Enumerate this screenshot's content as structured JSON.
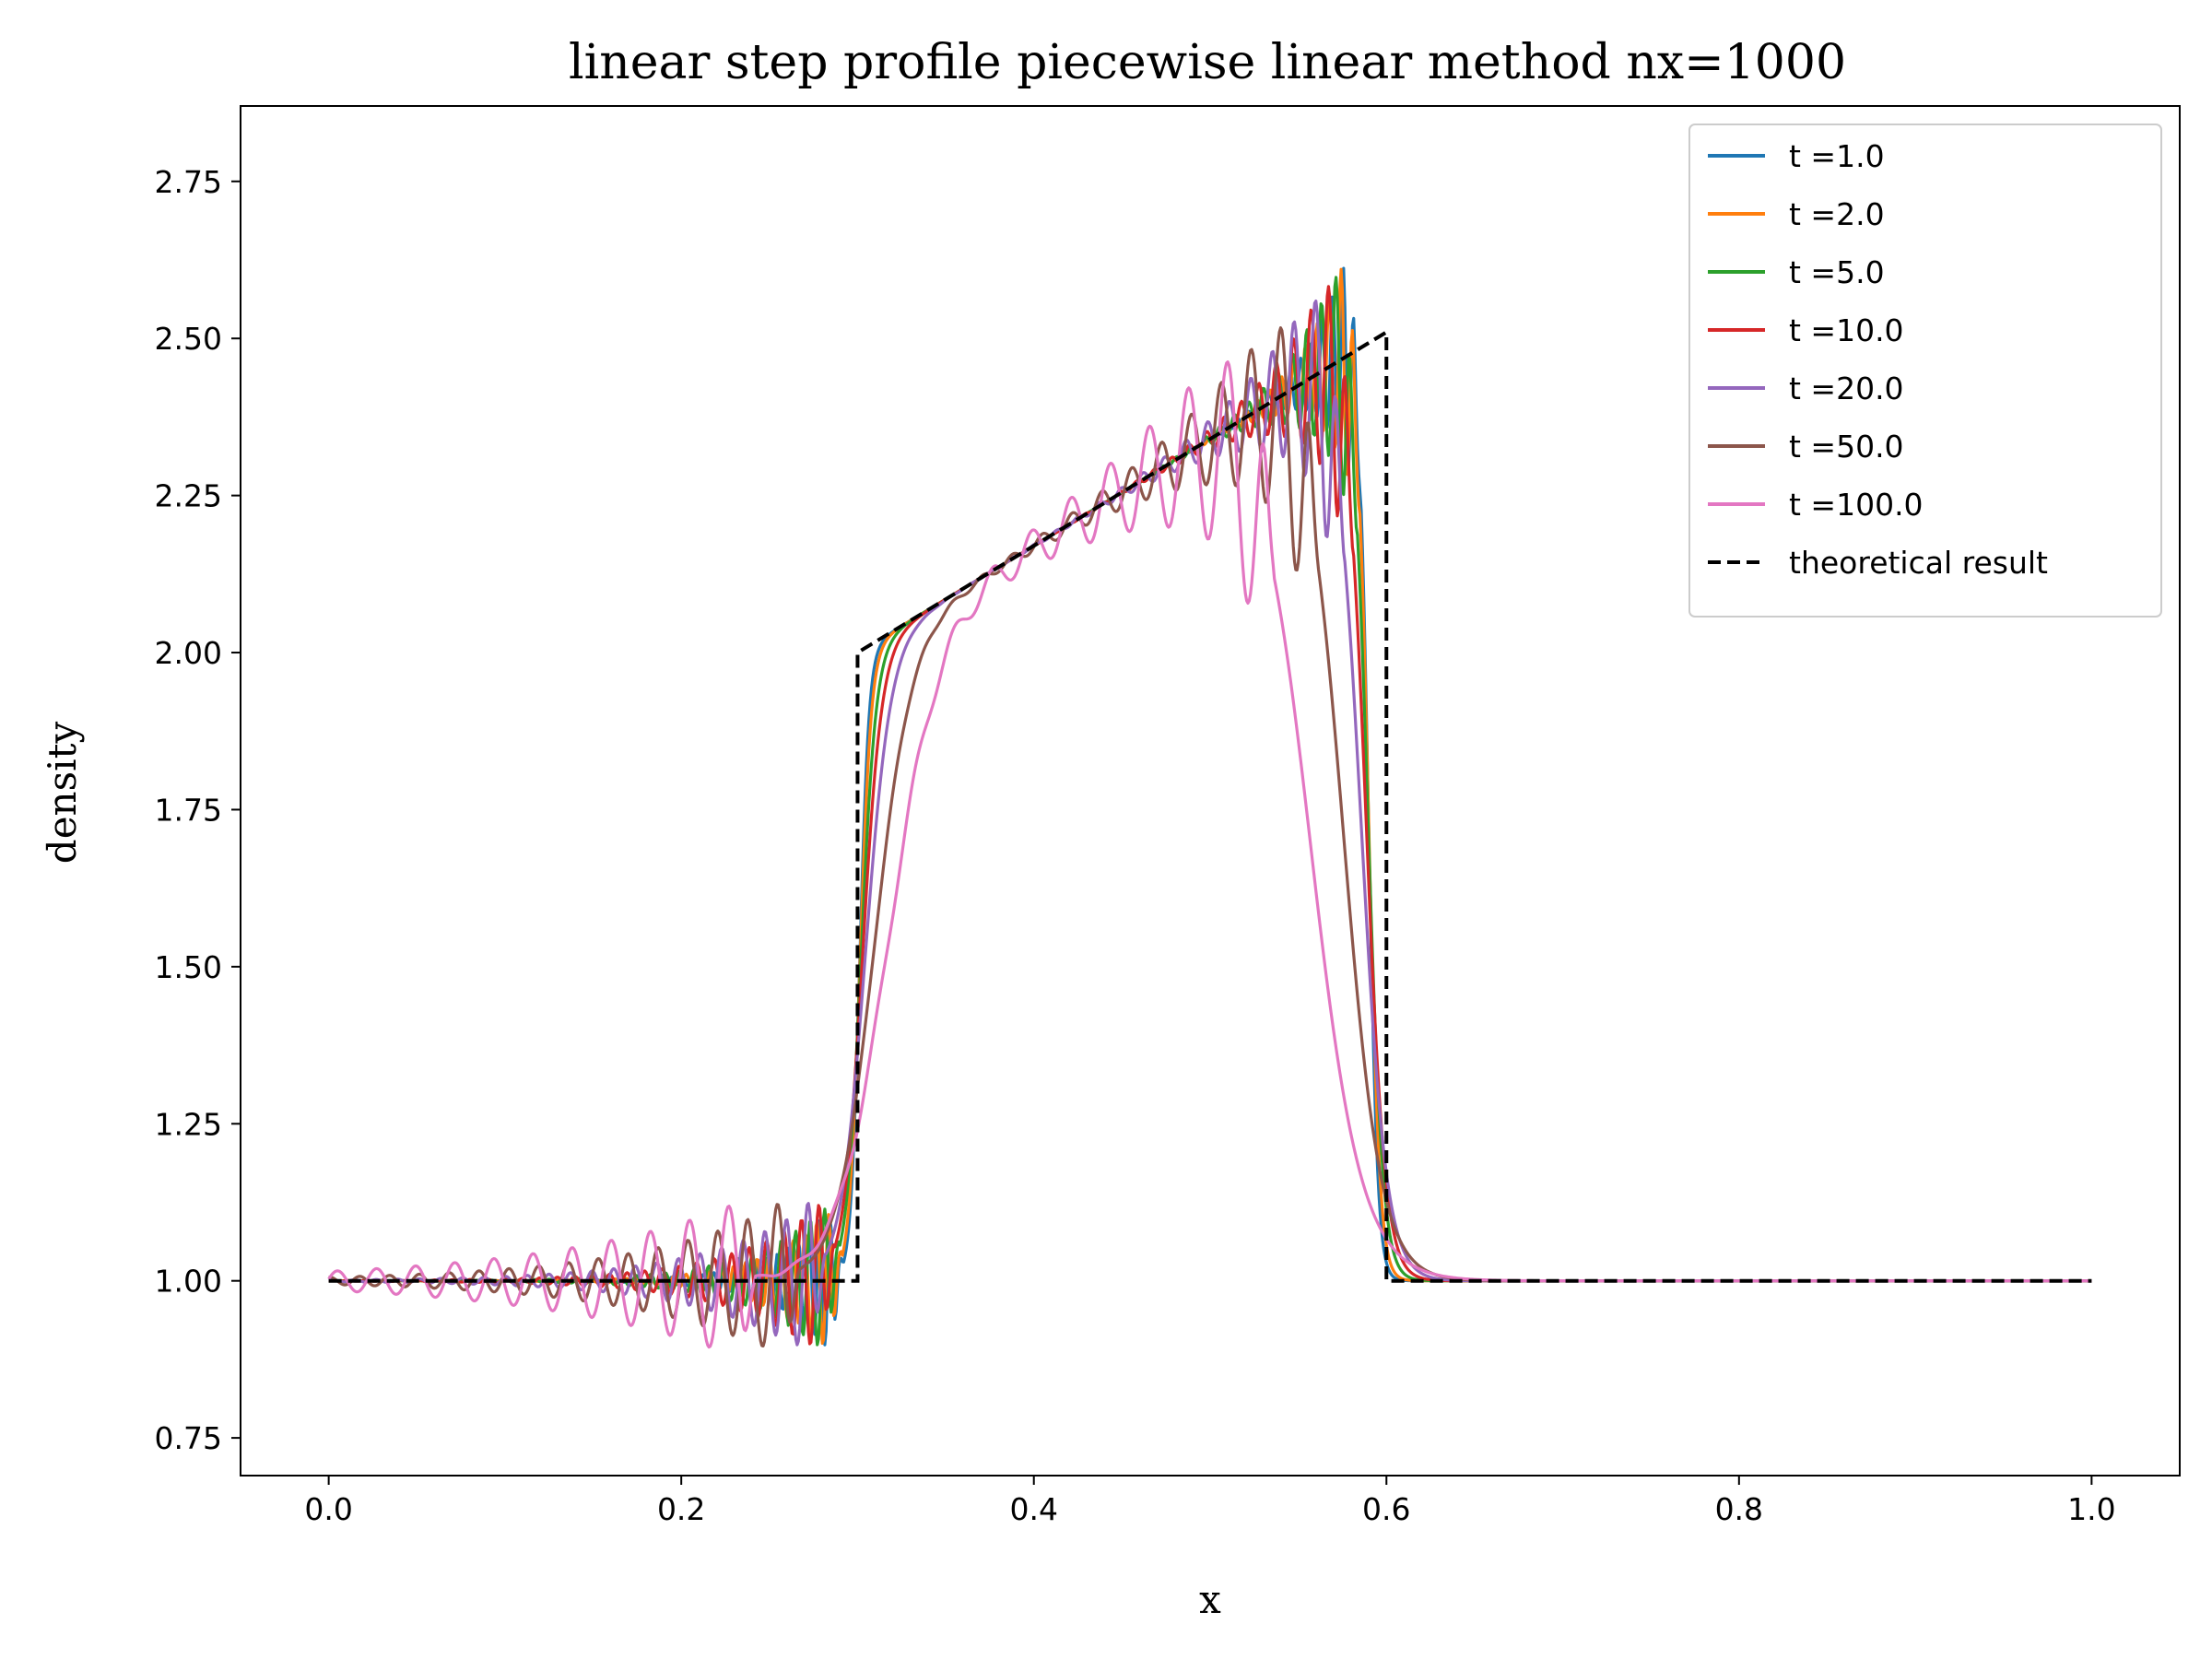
{
  "chart_data": {
    "type": "line",
    "title": "linear step profile piecewise linear method nx=1000",
    "xlabel": "x",
    "ylabel": "density",
    "xlim": [
      -0.05,
      1.05
    ],
    "ylim": [
      0.69,
      2.87
    ],
    "x_ticks": [
      0.0,
      0.2,
      0.4,
      0.6,
      0.8,
      1.0
    ],
    "x_tick_labels": [
      "0.0",
      "0.2",
      "0.4",
      "0.6",
      "0.8",
      "1.0"
    ],
    "y_ticks": [
      0.75,
      1.0,
      1.25,
      1.5,
      1.75,
      2.0,
      2.25,
      2.5,
      2.75
    ],
    "y_tick_labels": [
      "0.75",
      "1.00",
      "1.25",
      "1.50",
      "1.75",
      "2.00",
      "2.25",
      "2.50",
      "2.75"
    ],
    "grid": false,
    "legend_position": "top-right",
    "theory": {
      "name": "theoretical result",
      "color": "#000000",
      "dash": true,
      "x": [
        0.0,
        0.3,
        0.3,
        0.6,
        0.6,
        1.0
      ],
      "y": [
        1.0,
        1.0,
        2.0,
        2.51,
        1.0,
        1.0
      ]
    },
    "series": [
      {
        "name": "t =1.0",
        "color": "#1f77b4",
        "t": 1.0
      },
      {
        "name": "t =2.0",
        "color": "#ff7f0e",
        "t": 2.0
      },
      {
        "name": "t =5.0",
        "color": "#2ca02c",
        "t": 5.0
      },
      {
        "name": "t =10.0",
        "color": "#d62728",
        "t": 10.0
      },
      {
        "name": "t =20.0",
        "color": "#9467bd",
        "t": 20.0
      },
      {
        "name": "t =50.0",
        "color": "#8c564b",
        "t": 50.0
      },
      {
        "name": "t =100.0",
        "color": "#e377c2",
        "t": 100.0
      }
    ]
  }
}
